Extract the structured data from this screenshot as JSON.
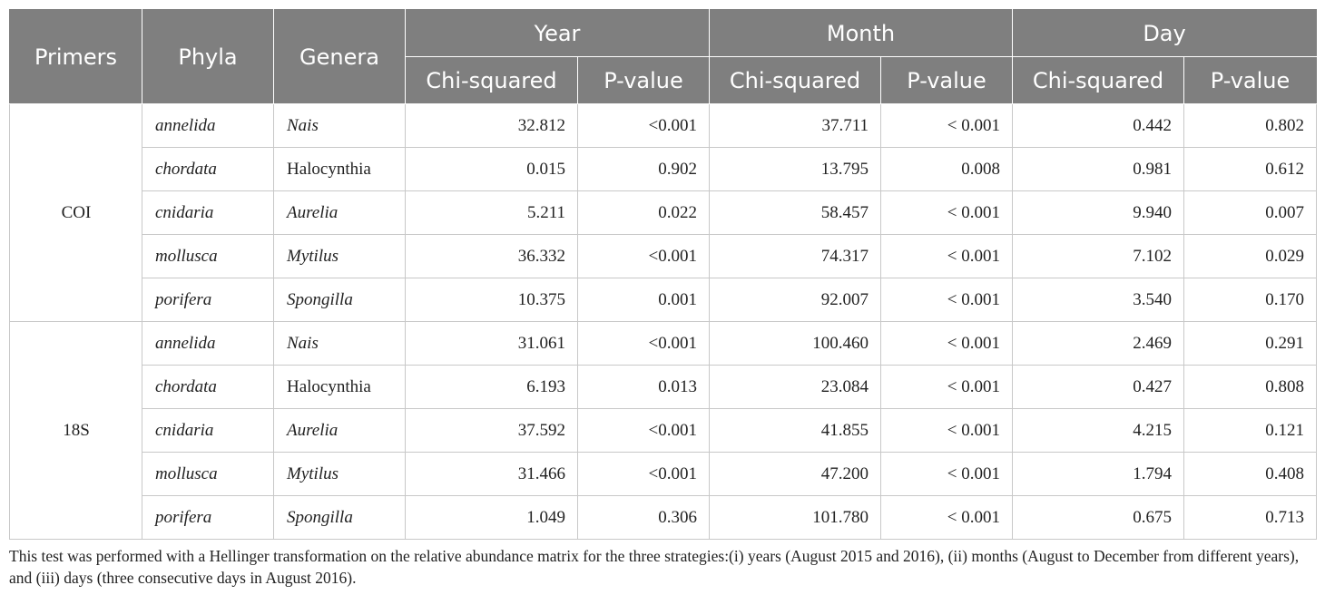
{
  "table": {
    "headers": {
      "primers": "Primers",
      "phyla": "Phyla",
      "genera": "Genera",
      "groups": [
        "Year",
        "Month",
        "Day"
      ],
      "sub": [
        "Chi-squared",
        "P-value",
        "Chi-squared",
        "P-value",
        "Chi-squared",
        "P-value"
      ]
    },
    "groups": [
      {
        "primer": "COI",
        "rows": [
          {
            "phylum": "annelida",
            "genus": "Nais",
            "genus_italic": true,
            "year_chi": "32.812",
            "year_p": "<0.001",
            "month_chi": "37.711",
            "month_p": "< 0.001",
            "day_chi": "0.442",
            "day_p": "0.802"
          },
          {
            "phylum": "chordata",
            "genus": "Halocynthia",
            "genus_italic": false,
            "year_chi": "0.015",
            "year_p": "0.902",
            "month_chi": "13.795",
            "month_p": "0.008",
            "day_chi": "0.981",
            "day_p": "0.612"
          },
          {
            "phylum": "cnidaria",
            "genus": "Aurelia",
            "genus_italic": true,
            "year_chi": "5.211",
            "year_p": "0.022",
            "month_chi": "58.457",
            "month_p": "< 0.001",
            "day_chi": "9.940",
            "day_p": "0.007"
          },
          {
            "phylum": "mollusca",
            "genus": "Mytilus",
            "genus_italic": true,
            "year_chi": "36.332",
            "year_p": "<0.001",
            "month_chi": "74.317",
            "month_p": "< 0.001",
            "day_chi": "7.102",
            "day_p": "0.029"
          },
          {
            "phylum": "porifera",
            "genus": "Spongilla",
            "genus_italic": true,
            "year_chi": "10.375",
            "year_p": "0.001",
            "month_chi": "92.007",
            "month_p": "< 0.001",
            "day_chi": "3.540",
            "day_p": "0.170"
          }
        ]
      },
      {
        "primer": "18S",
        "rows": [
          {
            "phylum": "annelida",
            "genus": "Nais",
            "genus_italic": true,
            "year_chi": "31.061",
            "year_p": "<0.001",
            "month_chi": "100.460",
            "month_p": "< 0.001",
            "day_chi": "2.469",
            "day_p": "0.291"
          },
          {
            "phylum": "chordata",
            "genus": "Halocynthia",
            "genus_italic": false,
            "year_chi": "6.193",
            "year_p": "0.013",
            "month_chi": "23.084",
            "month_p": "< 0.001",
            "day_chi": "0.427",
            "day_p": "0.808"
          },
          {
            "phylum": "cnidaria",
            "genus": "Aurelia",
            "genus_italic": true,
            "year_chi": "37.592",
            "year_p": "<0.001",
            "month_chi": "41.855",
            "month_p": "< 0.001",
            "day_chi": "4.215",
            "day_p": "0.121"
          },
          {
            "phylum": "mollusca",
            "genus": "Mytilus",
            "genus_italic": true,
            "year_chi": "31.466",
            "year_p": "<0.001",
            "month_chi": "47.200",
            "month_p": "< 0.001",
            "day_chi": "1.794",
            "day_p": "0.408"
          },
          {
            "phylum": "porifera",
            "genus": "Spongilla",
            "genus_italic": true,
            "year_chi": "1.049",
            "year_p": "0.306",
            "month_chi": "101.780",
            "month_p": "< 0.001",
            "day_chi": "0.675",
            "day_p": "0.713"
          }
        ]
      }
    ]
  },
  "footnote": "This test was performed with a Hellinger transformation on the relative abundance matrix for the three strategies:(i) years (August 2015 and 2016), (ii) months (August to December from different years), and (iii) days (three consecutive days in August 2016).",
  "colors": {
    "header_bg": "#7f7f7f",
    "header_text": "#ffffff",
    "grid": "#c8c8c8",
    "body_text": "#222222"
  }
}
